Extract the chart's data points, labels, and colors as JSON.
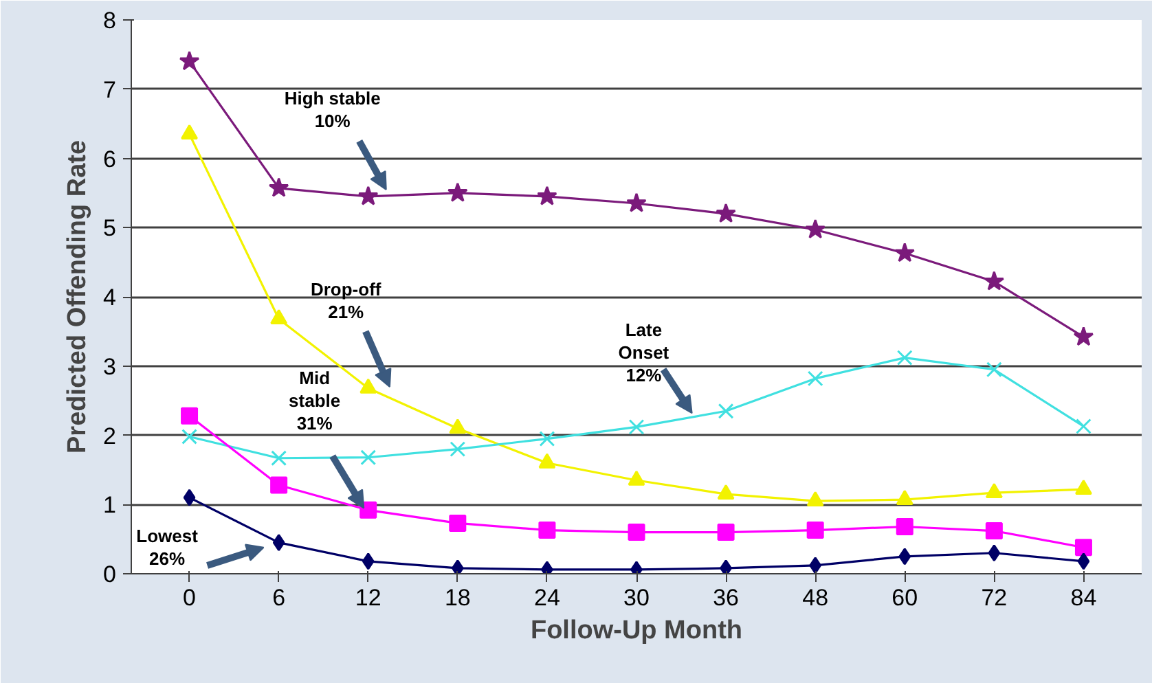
{
  "chart_data": {
    "type": "line",
    "xlabel": "Follow-Up Month",
    "ylabel": "Predicted Offending Rate",
    "categories": [
      "0",
      "6",
      "12",
      "18",
      "24",
      "30",
      "36",
      "48",
      "60",
      "72",
      "84"
    ],
    "ylim": [
      0,
      8
    ],
    "yticks": [
      0,
      1,
      2,
      3,
      4,
      5,
      6,
      7,
      8
    ],
    "grid": "y",
    "series": [
      {
        "name": "High stable\n10%",
        "color": "#7b1a7b",
        "marker": "star",
        "values": [
          7.4,
          5.57,
          5.45,
          5.5,
          5.45,
          5.35,
          5.2,
          4.97,
          4.63,
          4.22,
          3.42
        ]
      },
      {
        "name": "Drop-off\n21%",
        "color": "#f2f200",
        "marker": "triangle",
        "values": [
          6.35,
          3.68,
          2.68,
          2.1,
          1.6,
          1.35,
          1.15,
          1.05,
          1.07,
          1.17,
          1.22
        ]
      },
      {
        "name": "Late\nOnset\n12%",
        "color": "#40e0e0",
        "marker": "cross",
        "values": [
          1.98,
          1.67,
          1.68,
          1.8,
          1.95,
          2.12,
          2.35,
          2.82,
          3.12,
          2.95,
          2.13
        ]
      },
      {
        "name": "Mid\nstable\n31%",
        "color": "#ff00ff",
        "marker": "square",
        "values": [
          2.28,
          1.28,
          0.92,
          0.73,
          0.63,
          0.6,
          0.6,
          0.63,
          0.68,
          0.62,
          0.38
        ]
      },
      {
        "name": "Lowest\n26%",
        "color": "#000066",
        "marker": "diamond",
        "values": [
          1.1,
          0.45,
          0.18,
          0.08,
          0.06,
          0.06,
          0.08,
          0.12,
          0.25,
          0.3,
          0.18
        ]
      }
    ]
  }
}
